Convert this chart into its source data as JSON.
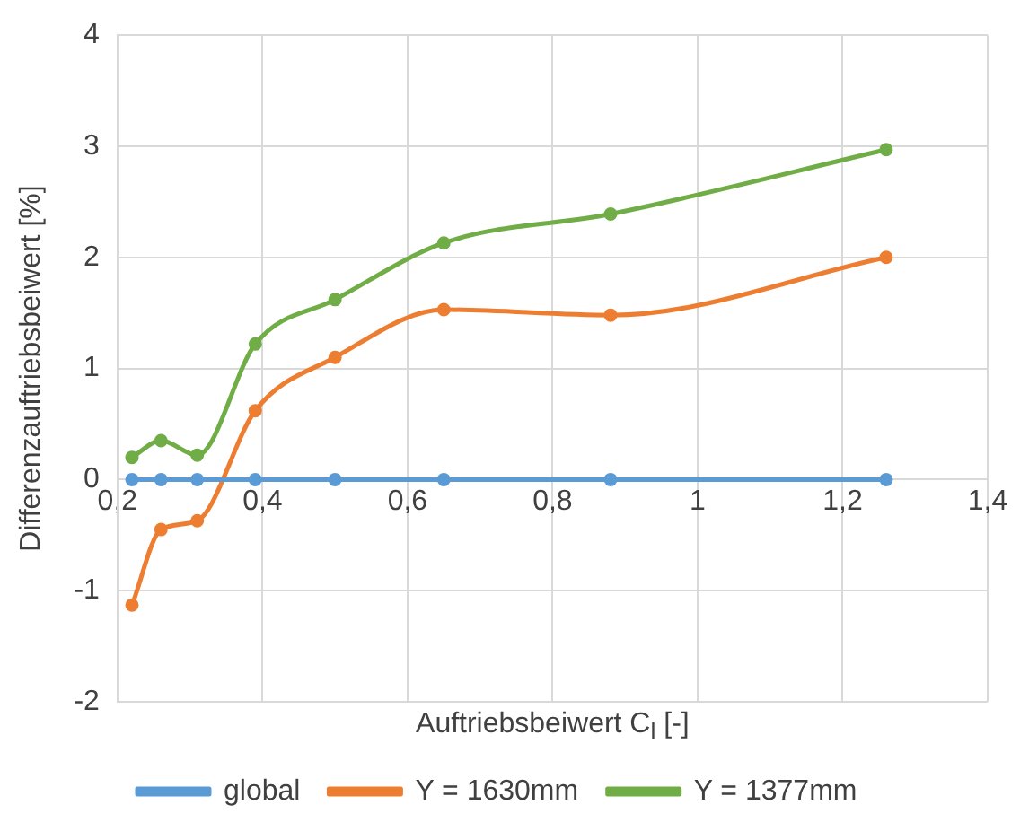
{
  "chart_data": {
    "type": "line",
    "xlabel": "Auftriebsbeiwert C$_{l}$ [-]",
    "ylabel": "Differenzauftriebsbeiwert [%]",
    "x": [
      0.22,
      0.26,
      0.31,
      0.39,
      0.5,
      0.65,
      0.88,
      1.26
    ],
    "series": [
      {
        "name": "global",
        "color": "#5b9bd5",
        "values": [
          0,
          0,
          0,
          0,
          0,
          0,
          0,
          0
        ]
      },
      {
        "name": "Y = 1630mm",
        "color": "#ed7d31",
        "values": [
          -1.13,
          -0.45,
          -0.37,
          0.62,
          1.1,
          1.53,
          1.48,
          2.0
        ]
      },
      {
        "name": "Y = 1377mm",
        "color": "#70ad47",
        "values": [
          0.2,
          0.35,
          0.22,
          1.22,
          1.62,
          2.13,
          2.39,
          2.97
        ]
      }
    ],
    "xlim": [
      0.2,
      1.4
    ],
    "xticks": [
      {
        "value": 0.2,
        "label": "0,2"
      },
      {
        "value": 0.4,
        "label": "0,4"
      },
      {
        "value": 0.6,
        "label": "0,6"
      },
      {
        "value": 0.8,
        "label": "0,8"
      },
      1,
      {
        "value": 1.2,
        "label": "1,2"
      },
      {
        "value": 1.4,
        "label": "1,4"
      }
    ],
    "ylim": [
      -2,
      4
    ],
    "yticks": [
      -2,
      -1,
      0,
      1,
      2,
      3,
      4
    ],
    "grid": true,
    "legend": "bottom",
    "marker": "circle",
    "line_style": "solid"
  }
}
